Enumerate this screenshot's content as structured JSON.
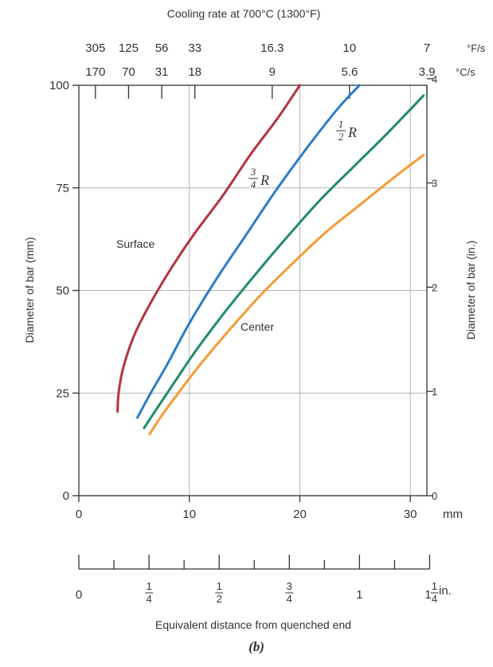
{
  "chart_data": {
    "type": "line",
    "top_axis": {
      "title": "Cooling rate at 700°C (1300°F)",
      "f_values": [
        "305",
        "125",
        "56",
        "33",
        "16.3",
        "10",
        "7"
      ],
      "f_unit": "°F/s",
      "c_values": [
        "170",
        "70",
        "31",
        "18",
        "9",
        "5.6",
        "3.9"
      ],
      "c_unit": "°C/s",
      "tick_positions_mm": [
        1.5,
        4.5,
        7.5,
        10.5,
        17.5,
        24.5,
        31.5
      ]
    },
    "x_axis": {
      "label": "Equivalent distance from quenched end",
      "ticks": [
        0,
        10,
        20,
        30
      ],
      "tick_labels": [
        "0",
        "10",
        "20",
        "30"
      ],
      "unit": "mm",
      "range": [
        0,
        31.5
      ]
    },
    "x_axis_inches": {
      "tick_labels": [
        {
          "whole": "0",
          "num": "",
          "den": ""
        },
        {
          "whole": "",
          "num": "1",
          "den": "4"
        },
        {
          "whole": "",
          "num": "1",
          "den": "2"
        },
        {
          "whole": "",
          "num": "3",
          "den": "4"
        },
        {
          "whole": "1",
          "num": "",
          "den": ""
        },
        {
          "whole": "1",
          "num": "1",
          "den": "4"
        }
      ],
      "tick_values_in": [
        0,
        0.25,
        0.5,
        0.75,
        1.0,
        1.25
      ],
      "minor_step_in": 0.125,
      "unit": "in."
    },
    "y_axis": {
      "label": "Diameter of bar (mm)",
      "ticks": [
        0,
        25,
        50,
        75,
        100
      ],
      "tick_labels": [
        "0",
        "25",
        "50",
        "75",
        "100"
      ],
      "range": [
        0,
        100
      ]
    },
    "y_axis_right": {
      "label": "Diameter of bar (in.)",
      "ticks": [
        0,
        1,
        2,
        3,
        4
      ],
      "tick_labels": [
        "0",
        "1",
        "2",
        "3",
        "4"
      ]
    },
    "grid": true,
    "series": [
      {
        "name": "Surface",
        "color": "#b5333d",
        "x": [
          3.5,
          3.6,
          4.0,
          5.0,
          6.5,
          8.5,
          10.5,
          13.0,
          15.5,
          18.0,
          20.0
        ],
        "y": [
          20.5,
          25.0,
          31.0,
          39.0,
          47.0,
          56.0,
          64.0,
          73.0,
          83.0,
          92.0,
          100.0
        ]
      },
      {
        "name": "3/4 R",
        "color": "#2a7dc8",
        "x": [
          5.3,
          6.5,
          8.0,
          10.0,
          12.5,
          15.0,
          18.0,
          21.0,
          23.5,
          25.4
        ],
        "y": [
          19.0,
          25.0,
          32.0,
          42.0,
          53.0,
          63.0,
          75.0,
          86.0,
          94.5,
          100.0
        ]
      },
      {
        "name": "1/2 R",
        "color": "#1e8c6b",
        "x": [
          5.9,
          7.0,
          8.5,
          10.5,
          13.0,
          16.0,
          19.0,
          22.0,
          25.0,
          28.0,
          31.2
        ],
        "y": [
          16.5,
          21.0,
          27.0,
          35.0,
          44.0,
          54.0,
          63.5,
          72.5,
          80.5,
          88.5,
          97.5
        ]
      },
      {
        "name": "Center",
        "color": "#f59b35",
        "x": [
          6.4,
          7.5,
          9.0,
          11.0,
          13.5,
          16.5,
          19.5,
          22.5,
          25.5,
          28.5,
          31.2
        ],
        "y": [
          15.0,
          19.5,
          25.0,
          32.0,
          40.0,
          49.0,
          57.0,
          64.5,
          71.0,
          77.5,
          83.0
        ]
      }
    ],
    "annotations": {
      "surface": "Surface",
      "center": "Center",
      "three_quarter_r": {
        "num": "3",
        "den": "4",
        "letter": "R"
      },
      "half_r": {
        "num": "1",
        "den": "2",
        "letter": "R"
      }
    },
    "caption": "(b)"
  }
}
